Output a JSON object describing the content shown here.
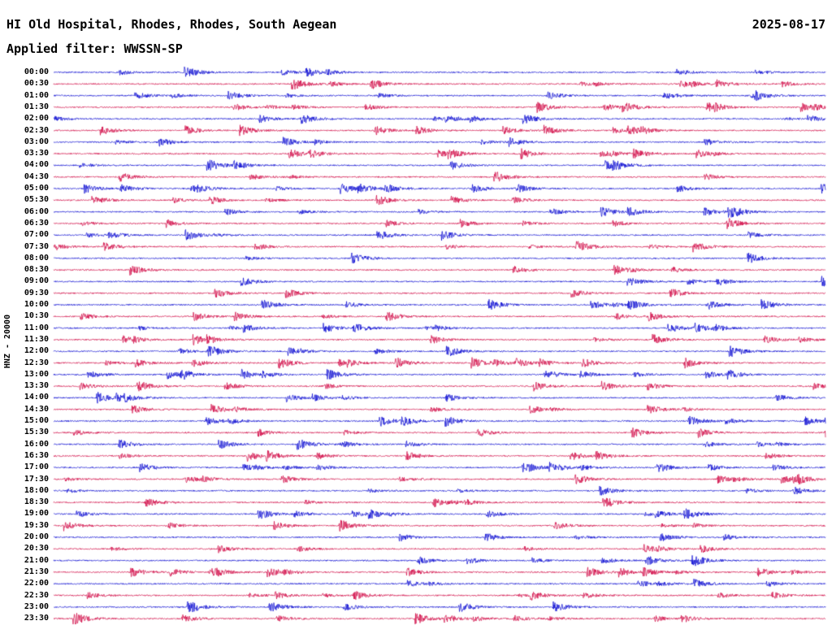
{
  "header": {
    "station_title": "HI Old Hospital, Rhodes, Rhodes, South Aegean",
    "date": "2025-08-17",
    "filter_label": "Applied filter: WWSSN-SP"
  },
  "axis": {
    "left_label": "HNZ - 20000"
  },
  "colors": {
    "trace_blue": "#0000d0",
    "trace_red": "#d00040",
    "text": "#000000",
    "background": "#ffffff"
  },
  "chart_data": {
    "type": "line",
    "subtype": "helicorder-seismogram-dayplot",
    "title": "HI Old Hospital, Rhodes, Rhodes, South Aegean",
    "date": "2025-08-17",
    "filter": "WWSSN-SP",
    "ylabel": "HNZ - 20000",
    "rows_per_day": 48,
    "minutes_per_row": 30,
    "row_times": [
      "00:00",
      "00:30",
      "01:00",
      "01:30",
      "02:00",
      "02:30",
      "03:00",
      "03:30",
      "04:00",
      "04:30",
      "05:00",
      "05:30",
      "06:00",
      "06:30",
      "07:00",
      "07:30",
      "08:00",
      "08:30",
      "09:00",
      "09:30",
      "10:00",
      "10:30",
      "11:00",
      "11:30",
      "12:00",
      "12:30",
      "13:00",
      "13:30",
      "14:00",
      "14:30",
      "15:00",
      "15:30",
      "16:00",
      "16:30",
      "17:00",
      "17:30",
      "18:00",
      "18:30",
      "19:00",
      "19:30",
      "20:00",
      "20:30",
      "21:00",
      "21:30",
      "22:00",
      "22:30",
      "23:00",
      "23:30"
    ],
    "trace_color_cycle": [
      "#0000d0",
      "#d00040"
    ],
    "waveform_note": "continuous ambient seismic noise with intermittent small bursts on every trace"
  }
}
